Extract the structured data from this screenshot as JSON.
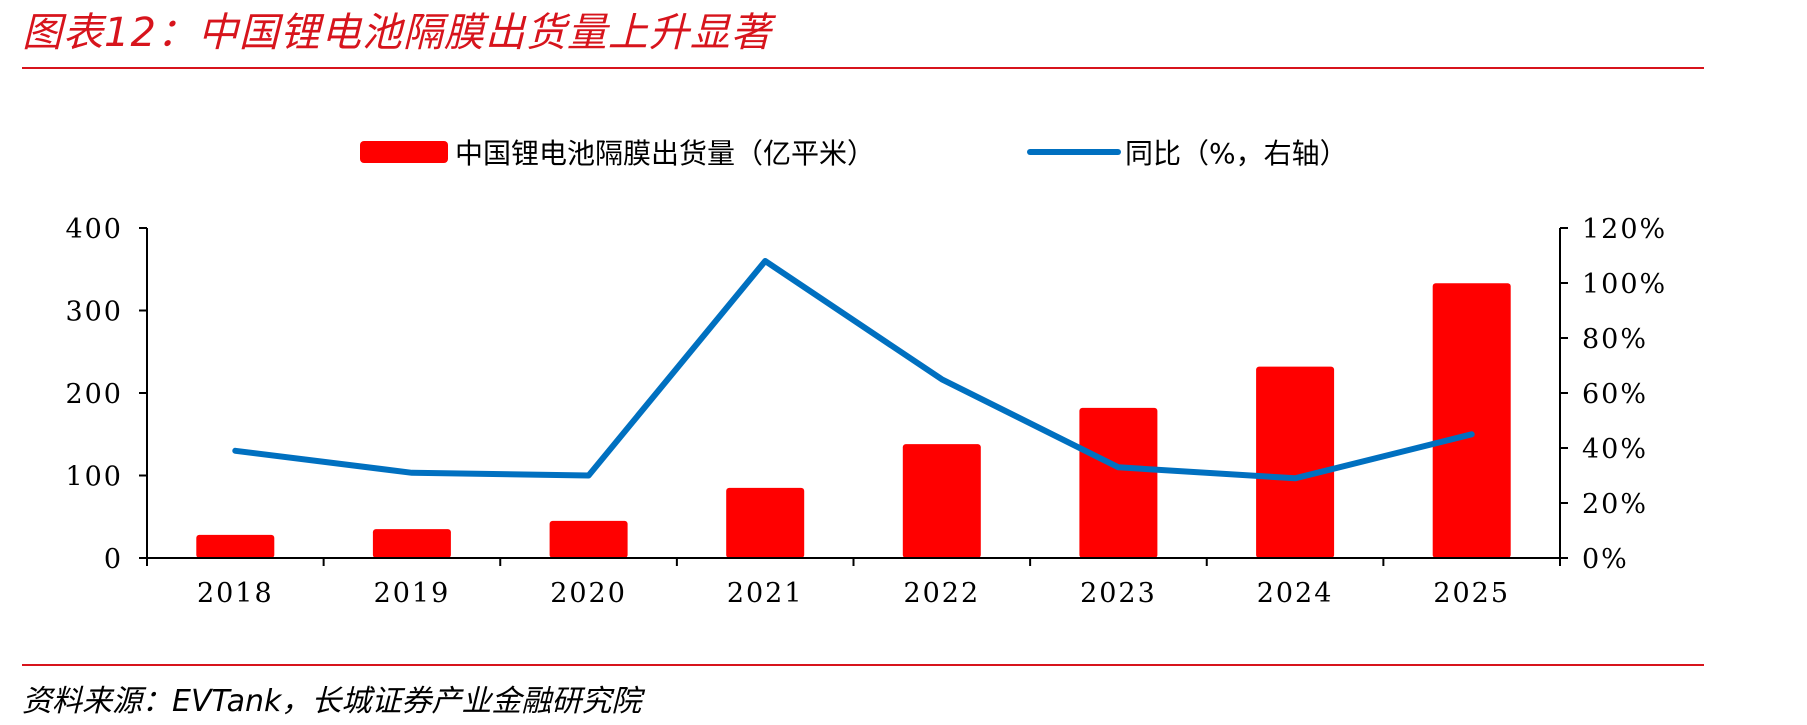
{
  "figure": {
    "title": "图表12：中国锂电池隔膜出货量上升显著",
    "source": "资料来源：EVTank，长城证券产业金融研究院"
  },
  "chart_data": {
    "type": "bar",
    "categories": [
      "2018",
      "2019",
      "2020",
      "2021",
      "2022",
      "2023",
      "2024",
      "2025"
    ],
    "series": [
      {
        "name": "中国锂电池隔膜出货量（亿平米）",
        "type": "bar",
        "axis": "left",
        "color": "#ff0000",
        "values": [
          28,
          35,
          45,
          85,
          138,
          182,
          232,
          333
        ]
      },
      {
        "name": "同比（%，右轴）",
        "type": "line",
        "axis": "right",
        "color": "#0070c0",
        "values": [
          39,
          31,
          30,
          108,
          65,
          33,
          29,
          45
        ]
      }
    ],
    "left_axis": {
      "ylim": [
        0,
        400
      ],
      "ticks": [
        "0",
        "100",
        "200",
        "300",
        "400"
      ]
    },
    "right_axis": {
      "ylim": [
        0,
        120
      ],
      "ticks": [
        "0%",
        "20%",
        "40%",
        "60%",
        "80%",
        "100%",
        "120%"
      ]
    },
    "grid": false,
    "legend_position": "top-center"
  }
}
